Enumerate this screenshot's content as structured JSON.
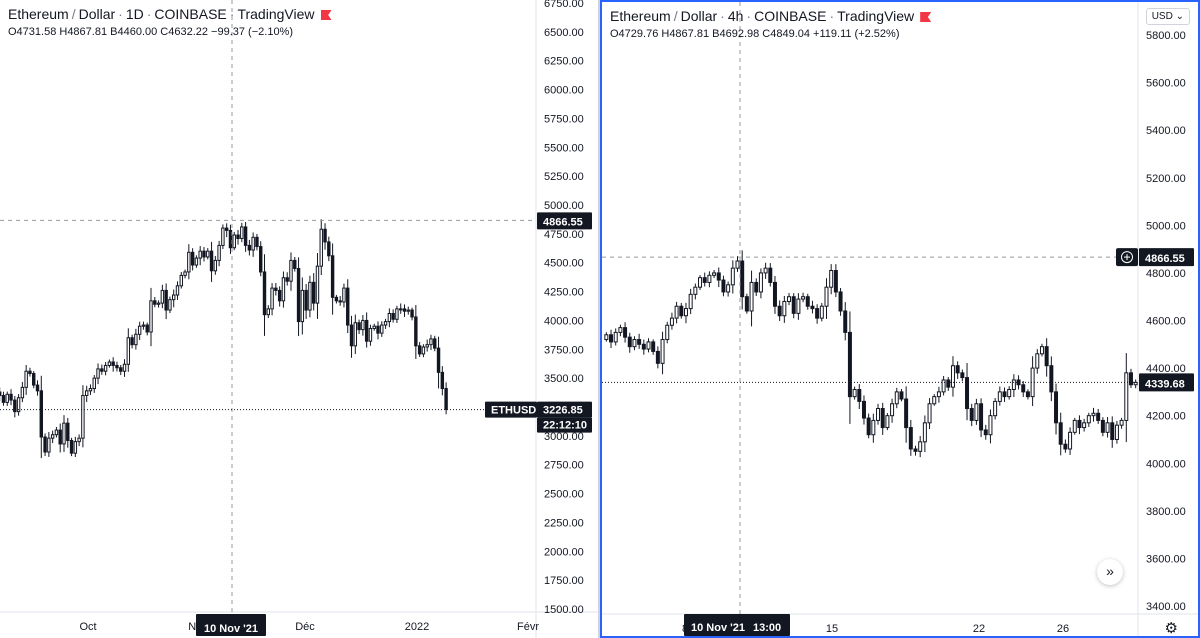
{
  "left": {
    "title_parts": [
      "Ethereum",
      "/",
      "Dollar",
      "·",
      "1D",
      "·",
      "COINBASE",
      "·",
      "TradingView"
    ],
    "ohlc_text": "O4731.58 H4867.81 B4460.00 C4632.22 −99.37 (−2.10%)",
    "symbol_tag": "ETHUSD",
    "price_tag": "3226.85",
    "countdown": "22:12:10",
    "crosshair_price": "4866.55",
    "crosshair_date": "10 Nov '21"
  },
  "right": {
    "title_parts": [
      "Ethereum",
      "/",
      "Dollar",
      "·",
      "4h",
      "·",
      "COINBASE",
      "·",
      "TradingView"
    ],
    "ohlc_text": "O4729.76 H4867.81 B4692.98 C4849.04 +119.11 (+2.52%)",
    "currency_button": "USD",
    "price_tag": "4339.68",
    "crosshair_price": "4866.55",
    "crosshair_date": "10 Nov '21",
    "crosshair_time": "13:00",
    "nav_icon": "double-chevron-right-icon",
    "settings_icon": "gear-icon"
  },
  "colors": {
    "up": "#131722",
    "down": "#131722",
    "tag_bg": "#131722",
    "accent_border": "#2962ff",
    "flag": "#f23645"
  },
  "chart_data": [
    {
      "type": "candlestick",
      "timeframe": "1D",
      "ylim": [
        1500,
        6750
      ],
      "y_ticks": [
        1500,
        1750,
        2000,
        2250,
        2500,
        2750,
        3000,
        3250,
        3500,
        3750,
        4000,
        4250,
        4500,
        4750,
        5000,
        5250,
        5500,
        5750,
        6000,
        6250,
        6500,
        6750
      ],
      "x_ticks": [
        "Oct",
        "Nov",
        "Déc",
        "2022",
        "Févr"
      ],
      "grid": false,
      "last_price": 3226.85,
      "crosshair_price": 4866.55,
      "close_series": [
        3380,
        3350,
        3290,
        3360,
        3310,
        3210,
        3330,
        3420,
        3560,
        3540,
        3440,
        3390,
        2990,
        2860,
        2980,
        3010,
        3050,
        2930,
        3110,
        2960,
        2850,
        2950,
        2980,
        3350,
        3390,
        3410,
        3500,
        3580,
        3560,
        3610,
        3640,
        3610,
        3590,
        3560,
        3620,
        3850,
        3790,
        3880,
        3950,
        3960,
        3900,
        4170,
        4140,
        4150,
        4260,
        4090,
        4180,
        4220,
        4300,
        4390,
        4420,
        4590,
        4480,
        4540,
        4600,
        4550,
        4600,
        4430,
        4520,
        4650,
        4800,
        4780,
        4630,
        4740,
        4710,
        4810,
        4650,
        4610,
        4720,
        4640,
        4420,
        4050,
        4100,
        4280,
        4260,
        4170,
        4370,
        4340,
        4520,
        4450,
        3990,
        4260,
        4090,
        4330,
        4150,
        4470,
        4790,
        4680,
        4560,
        4200,
        4170,
        4160,
        4280,
        3960,
        3780,
        3980,
        3920,
        4000,
        3820,
        3930,
        3950,
        3890,
        3960,
        3990,
        4060,
        4010,
        4100,
        4100,
        4080,
        4090,
        4030,
        3780,
        3710,
        3770,
        3790,
        3840,
        3760,
        3550,
        3410,
        3230
      ]
    },
    {
      "type": "candlestick",
      "timeframe": "4h",
      "ylim": [
        3400,
        5800
      ],
      "y_ticks": [
        3400,
        3600,
        3800,
        4000,
        4200,
        4400,
        4600,
        4800,
        5000,
        5200,
        5400,
        5600,
        5800
      ],
      "x_ticks": [
        "8",
        "15",
        "22",
        "26"
      ],
      "grid": false,
      "last_price": 4339.68,
      "crosshair_price": 4866.55,
      "close_series": [
        4540,
        4510,
        4550,
        4570,
        4530,
        4490,
        4520,
        4500,
        4480,
        4510,
        4470,
        4420,
        4520,
        4580,
        4610,
        4660,
        4620,
        4650,
        4710,
        4740,
        4780,
        4760,
        4790,
        4800,
        4770,
        4720,
        4750,
        4820,
        4850,
        4700,
        4640,
        4760,
        4720,
        4800,
        4820,
        4760,
        4660,
        4620,
        4680,
        4700,
        4630,
        4690,
        4700,
        4660,
        4650,
        4610,
        4660,
        4740,
        4810,
        4720,
        4640,
        4550,
        4280,
        4310,
        4260,
        4190,
        4120,
        4180,
        4230,
        4150,
        4200,
        4250,
        4300,
        4270,
        4150,
        4060,
        4050,
        4090,
        4170,
        4250,
        4280,
        4300,
        4350,
        4320,
        4410,
        4380,
        4360,
        4230,
        4180,
        4250,
        4140,
        4120,
        4200,
        4260,
        4300,
        4280,
        4310,
        4350,
        4330,
        4300,
        4280,
        4400,
        4460,
        4490,
        4410,
        4300,
        4170,
        4080,
        4060,
        4130,
        4180,
        4150,
        4170,
        4200,
        4210,
        4180,
        4130,
        4170,
        4100,
        4160,
        4180,
        4380,
        4330,
        4340
      ]
    }
  ]
}
